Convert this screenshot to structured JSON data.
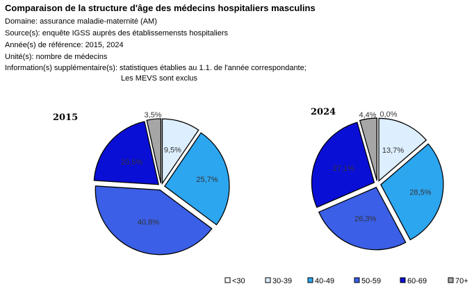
{
  "header": {
    "title": "Comparaison de la structure d'âge des médecins hospitaliers masculins",
    "domaine": "Domaine: assurance maladie-maternité (AM)",
    "source": "Source(s): enquête IGSS auprès des établissemensts hospitaliers",
    "annee": "Année(s) de référence: 2015, 2024",
    "unite": "Unité(s): nombre de médecins",
    "info": "Information(s) supplémentaire(s): statistiques établies au 1.1. de l'année correspondante;",
    "info2": "Les MEVS sont exclus"
  },
  "colors": {
    "<30": "#ffffff",
    "30-39": "#ddeeff",
    "40-49": "#2da6f0",
    "50-59": "#3b5fe6",
    "60-69": "#0a0fd6",
    "70+": "#a6a6a6"
  },
  "chart_data": [
    {
      "type": "pie",
      "title": "2015",
      "categories": [
        "<30",
        "30-39",
        "40-49",
        "50-59",
        "60-69",
        "70+"
      ],
      "values": [
        0,
        9.5,
        25.7,
        40.8,
        20.5,
        3.5
      ],
      "labels": [
        "",
        "9,5%",
        "25,7%",
        "40,8%",
        "20,5%",
        "3,5%"
      ]
    },
    {
      "type": "pie",
      "title": "2024",
      "categories": [
        "<30",
        "30-39",
        "40-49",
        "50-59",
        "60-69",
        "70+"
      ],
      "values": [
        0.0,
        13.7,
        28.5,
        26.3,
        27.1,
        4.4
      ],
      "labels": [
        "0,0%",
        "13,7%",
        "28,5%",
        "26,3%",
        "27,1%",
        "4,4%"
      ]
    }
  ],
  "legend": [
    "<30",
    "30-39",
    "40-49",
    "50-59",
    "60-69",
    "70+"
  ]
}
